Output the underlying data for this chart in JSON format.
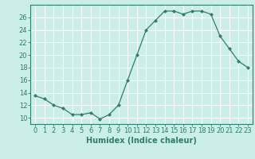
{
  "xlabel": "Humidex (Indice chaleur)",
  "ylabel": "",
  "x_values": [
    0,
    1,
    2,
    3,
    4,
    5,
    6,
    7,
    8,
    9,
    10,
    11,
    12,
    13,
    14,
    15,
    16,
    17,
    18,
    19,
    20,
    21,
    22,
    23
  ],
  "y_values": [
    13.5,
    13.0,
    12.0,
    11.5,
    10.5,
    10.5,
    10.8,
    9.8,
    10.5,
    12.0,
    16.0,
    20.0,
    24.0,
    25.5,
    27.0,
    27.0,
    26.5,
    27.0,
    27.0,
    26.5,
    23.0,
    21.0,
    19.0,
    18.0
  ],
  "line_color": "#2e7d6e",
  "marker": "D",
  "marker_size": 2,
  "bg_color": "#cceee8",
  "grid_color": "#ffffff",
  "ylim": [
    9,
    28
  ],
  "yticks": [
    10,
    12,
    14,
    16,
    18,
    20,
    22,
    24,
    26
  ],
  "xlim": [
    -0.5,
    23.5
  ],
  "tick_fontsize": 6,
  "label_fontsize": 7
}
